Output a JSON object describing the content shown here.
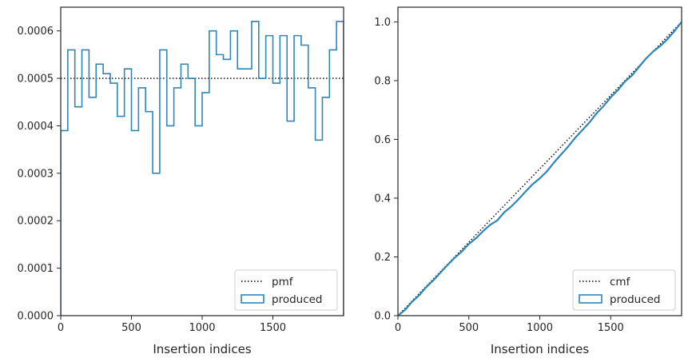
{
  "chart_data": [
    {
      "type": "step",
      "xlabel": "Insertion indices",
      "xlim": [
        0,
        2000
      ],
      "ylim": [
        0,
        0.00065
      ],
      "x_ticks": [
        0,
        500,
        1000,
        1500
      ],
      "x_tick_labels": [
        "0",
        "500",
        "1000",
        "1500"
      ],
      "y_ticks": [
        0,
        0.0001,
        0.0002,
        0.0003,
        0.0004,
        0.0005,
        0.0006
      ],
      "y_tick_labels": [
        "0.0000",
        "0.0001",
        "0.0002",
        "0.0003",
        "0.0004",
        "0.0005",
        "0.0006"
      ],
      "legend": {
        "placement": "lower-right",
        "entries": [
          "pmf",
          "produced"
        ]
      },
      "series": [
        {
          "name": "pmf",
          "style": "dotted",
          "color": "#000000",
          "x": [
            0,
            2000
          ],
          "values": [
            0.0005,
            0.0005
          ]
        },
        {
          "name": "produced",
          "style": "step-histogram",
          "color": "#2f86b8",
          "bin_edges": [
            0,
            50,
            100,
            150,
            200,
            250,
            300,
            350,
            400,
            450,
            500,
            550,
            600,
            650,
            700,
            750,
            800,
            850,
            900,
            950,
            1000,
            1050,
            1100,
            1150,
            1200,
            1250,
            1300,
            1350,
            1400,
            1450,
            1500,
            1550,
            1600,
            1650,
            1700,
            1750,
            1800,
            1850,
            1900,
            1950,
            2000
          ],
          "values": [
            0.00039,
            0.00056,
            0.00044,
            0.00056,
            0.00046,
            0.00053,
            0.00051,
            0.00049,
            0.00042,
            0.00052,
            0.00039,
            0.00048,
            0.00043,
            0.0003,
            0.00056,
            0.0004,
            0.00048,
            0.00053,
            0.0005,
            0.0004,
            0.00047,
            0.0006,
            0.00055,
            0.00054,
            0.0006,
            0.00052,
            0.00052,
            0.00062,
            0.0005,
            0.00059,
            0.00049,
            0.00059,
            0.00041,
            0.00059,
            0.00057,
            0.00048,
            0.00037,
            0.00046,
            0.00056,
            0.00062
          ]
        }
      ]
    },
    {
      "type": "line",
      "xlabel": "Insertion indices",
      "xlim": [
        0,
        2000
      ],
      "ylim": [
        0,
        1.05
      ],
      "x_ticks": [
        0,
        500,
        1000,
        1500
      ],
      "x_tick_labels": [
        "0",
        "500",
        "1000",
        "1500"
      ],
      "y_ticks": [
        0,
        0.2,
        0.4,
        0.6,
        0.8,
        1.0
      ],
      "y_tick_labels": [
        "0.0",
        "0.2",
        "0.4",
        "0.6",
        "0.8",
        "1.0"
      ],
      "legend": {
        "placement": "lower-right",
        "entries": [
          "cmf",
          "produced"
        ]
      },
      "series": [
        {
          "name": "cmf",
          "style": "dotted",
          "color": "#000000",
          "x": [
            0,
            2000
          ],
          "values": [
            0,
            1
          ]
        },
        {
          "name": "produced",
          "style": "solid",
          "color": "#2f86b8",
          "x": [
            0,
            50,
            100,
            150,
            200,
            250,
            300,
            350,
            400,
            450,
            500,
            550,
            600,
            650,
            700,
            750,
            800,
            850,
            900,
            950,
            1000,
            1050,
            1100,
            1150,
            1200,
            1250,
            1300,
            1350,
            1400,
            1450,
            1500,
            1550,
            1600,
            1650,
            1700,
            1750,
            1800,
            1850,
            1900,
            1950,
            2000
          ],
          "values": [
            0,
            0.0195,
            0.0475,
            0.0695,
            0.0975,
            0.1205,
            0.147,
            0.1725,
            0.197,
            0.218,
            0.244,
            0.2635,
            0.2875,
            0.309,
            0.324,
            0.352,
            0.372,
            0.396,
            0.4225,
            0.4475,
            0.4675,
            0.491,
            0.521,
            0.5485,
            0.5755,
            0.6055,
            0.6315,
            0.6575,
            0.6885,
            0.7135,
            0.743,
            0.7675,
            0.797,
            0.8175,
            0.847,
            0.8755,
            0.8995,
            0.918,
            0.941,
            0.969,
            1.0
          ]
        }
      ]
    }
  ]
}
